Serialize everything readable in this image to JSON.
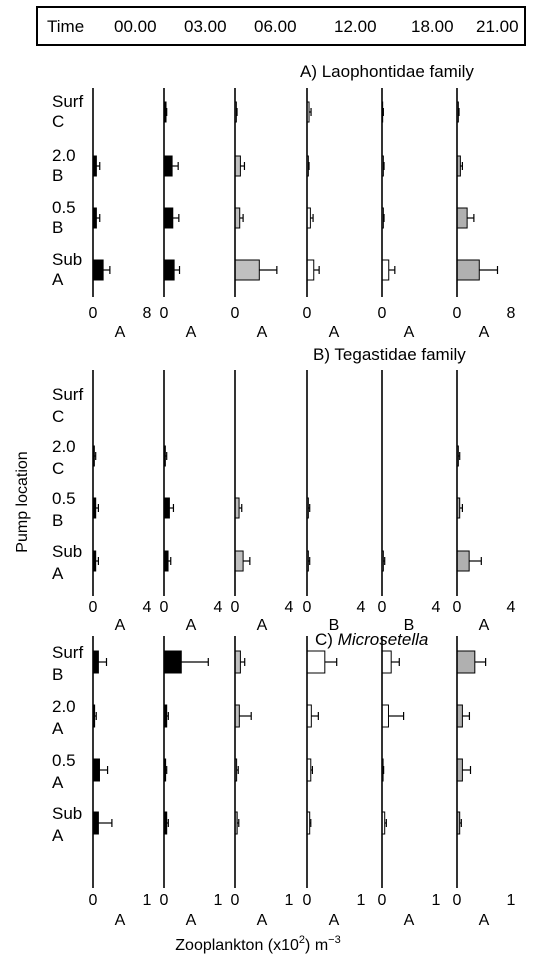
{
  "header": {
    "time_label": "Time",
    "times": [
      "00.00",
      "03.00",
      "06.00",
      "12.00",
      "18.00",
      "21.00"
    ]
  },
  "y_axis_title": "Pump location",
  "x_axis_title": "Zooplankton (x10",
  "x_axis_title_sup": "2",
  "x_axis_title_tail": ") m",
  "x_axis_title_tail_sup": "−3",
  "colors": {
    "00.00": "#000000",
    "03.00": "#000000",
    "06.00": "#c0c0c0",
    "12.00": "#ffffff",
    "18.00": "#ffffff",
    "21.00": "#b0b0b0"
  },
  "chart_data": [
    {
      "type": "bar",
      "orientation": "horizontal",
      "title": "A) Laophontidae family",
      "categories": [
        "Surf",
        "2.0",
        "0.5",
        "Sub"
      ],
      "category_groups": [
        "C",
        "B",
        "B",
        "A"
      ],
      "xlim": [
        0,
        8
      ],
      "xticks": [
        0,
        8
      ],
      "series": [
        {
          "name": "00.00",
          "values": [
            0.0,
            0.5,
            0.5,
            1.5
          ],
          "errors": [
            0.0,
            0.5,
            0.5,
            1.0
          ],
          "group": "A"
        },
        {
          "name": "03.00",
          "values": [
            0.3,
            1.2,
            1.3,
            1.5
          ],
          "errors": [
            0.1,
            0.9,
            0.9,
            0.8
          ],
          "group": "A"
        },
        {
          "name": "06.00",
          "values": [
            0.2,
            0.8,
            0.7,
            3.6
          ],
          "errors": [
            0.1,
            0.6,
            0.5,
            2.6
          ],
          "group": "A"
        },
        {
          "name": "12.00",
          "values": [
            0.3,
            0.2,
            0.5,
            1.0
          ],
          "errors": [
            0.3,
            0.1,
            0.4,
            0.8
          ],
          "group": "A"
        },
        {
          "name": "18.00",
          "values": [
            0.1,
            0.2,
            0.2,
            1.0
          ],
          "errors": [
            0.1,
            0.1,
            0.1,
            0.9
          ],
          "group": "A"
        },
        {
          "name": "21.00",
          "values": [
            0.2,
            0.5,
            1.5,
            3.3
          ],
          "errors": [
            0.1,
            0.3,
            1.0,
            2.7
          ],
          "group": "A"
        }
      ]
    },
    {
      "type": "bar",
      "orientation": "horizontal",
      "title": "B) Tegastidae family",
      "categories": [
        "Surf",
        "2.0",
        "0.5",
        "Sub"
      ],
      "category_groups": [
        "C",
        "C",
        "B",
        "A"
      ],
      "xlim": [
        0,
        4
      ],
      "xticks": [
        0,
        4
      ],
      "series": [
        {
          "name": "00.00",
          "values": [
            0.0,
            0.1,
            0.2,
            0.2
          ],
          "errors": [
            0.0,
            0.1,
            0.2,
            0.2
          ],
          "group": "A"
        },
        {
          "name": "03.00",
          "values": [
            0.0,
            0.1,
            0.4,
            0.3
          ],
          "errors": [
            0.0,
            0.1,
            0.3,
            0.2
          ],
          "group": "A"
        },
        {
          "name": "06.00",
          "values": [
            0.0,
            0.0,
            0.3,
            0.6
          ],
          "errors": [
            0.0,
            0.0,
            0.2,
            0.5
          ],
          "group": "A"
        },
        {
          "name": "12.00",
          "values": [
            0.0,
            0.0,
            0.1,
            0.1
          ],
          "errors": [
            0.0,
            0.0,
            0.1,
            0.1
          ],
          "group": "B"
        },
        {
          "name": "18.00",
          "values": [
            0.0,
            0.0,
            0.0,
            0.1
          ],
          "errors": [
            0.0,
            0.0,
            0.0,
            0.1
          ],
          "group": "B"
        },
        {
          "name": "21.00",
          "values": [
            0.0,
            0.1,
            0.2,
            0.9
          ],
          "errors": [
            0.0,
            0.1,
            0.2,
            0.9
          ],
          "group": "A"
        }
      ]
    },
    {
      "type": "bar",
      "orientation": "horizontal",
      "title": "C) Microsetella",
      "title_prefix": "C) ",
      "title_italic": "Microsetella",
      "categories": [
        "Surf",
        "2.0",
        "0.5",
        "Sub"
      ],
      "category_groups": [
        "B",
        "A",
        "A",
        "A"
      ],
      "xlim": [
        0,
        1
      ],
      "xticks": [
        0,
        1
      ],
      "series": [
        {
          "name": "00.00",
          "values": [
            0.1,
            0.03,
            0.12,
            0.1
          ],
          "errors": [
            0.15,
            0.03,
            0.15,
            0.25
          ],
          "group": "A"
        },
        {
          "name": "03.00",
          "values": [
            0.32,
            0.05,
            0.03,
            0.05
          ],
          "errors": [
            0.5,
            0.03,
            0.02,
            0.03
          ],
          "group": "A"
        },
        {
          "name": "06.00",
          "values": [
            0.1,
            0.08,
            0.03,
            0.04
          ],
          "errors": [
            0.08,
            0.22,
            0.03,
            0.03
          ],
          "group": "A"
        },
        {
          "name": "12.00",
          "values": [
            0.33,
            0.08,
            0.07,
            0.05
          ],
          "errors": [
            0.22,
            0.13,
            0.03,
            0.02
          ],
          "group": "A"
        },
        {
          "name": "18.00",
          "values": [
            0.17,
            0.12,
            0.02,
            0.05
          ],
          "errors": [
            0.15,
            0.28,
            0.01,
            0.03
          ],
          "group": "A"
        },
        {
          "name": "21.00",
          "values": [
            0.33,
            0.1,
            0.1,
            0.05
          ],
          "errors": [
            0.2,
            0.13,
            0.15,
            0.03
          ],
          "group": "A"
        }
      ]
    }
  ]
}
